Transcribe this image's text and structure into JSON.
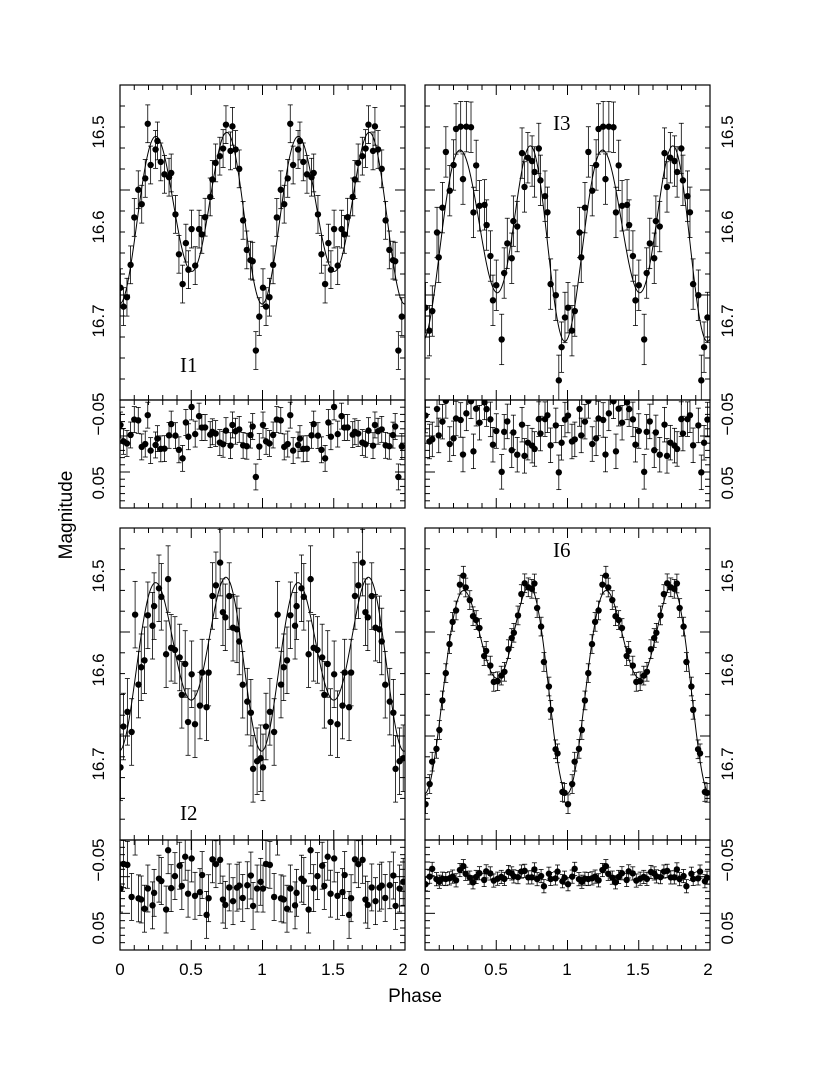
{
  "chart_data": {
    "type": "scatter",
    "xlabel": "Phase",
    "ylabel": "Magnitude",
    "x_ticks": [
      "0",
      "0.5",
      "1",
      "1.5",
      "2"
    ],
    "xlim": [
      0,
      2
    ],
    "main_ylim": [
      16.5,
      16.8
    ],
    "main_y_ticks": [
      "16.5",
      "16.6",
      "16.7"
    ],
    "resid_ylim": [
      -0.05,
      0.1
    ],
    "resid_y_ticks": [
      "−0.05",
      "0",
      "0.05"
    ],
    "y_inverted": true,
    "panels": [
      {
        "label": "I1",
        "curve": {
          "mean": 16.62,
          "terms": [
            [
              1,
              0.012,
              0.0
            ],
            [
              2,
              0.073,
              0.0
            ],
            [
              3,
              0.004,
              0.5
            ]
          ]
        },
        "noise": 0.016,
        "error_bar": 0.018,
        "resid_offset": 0.0,
        "seed": 11
      },
      {
        "label": "I3",
        "curve": {
          "mean": 16.64,
          "terms": [
            [
              1,
              0.02,
              0.3
            ],
            [
              2,
              0.08,
              0.1
            ],
            [
              3,
              0.008,
              1.2
            ]
          ]
        },
        "noise": 0.022,
        "error_bar": 0.024,
        "resid_offset": 0.0,
        "seed": 23
      },
      {
        "label": "I2",
        "curve": {
          "mean": 16.62,
          "terms": [
            [
              1,
              0.02,
              0.0
            ],
            [
              2,
              0.07,
              0.05
            ],
            [
              3,
              0.005,
              0.5
            ]
          ]
        },
        "noise": 0.03,
        "error_bar": 0.032,
        "resid_offset": 0.0,
        "seed": 37
      },
      {
        "label": "I6",
        "curve": {
          "mean": 16.63,
          "terms": [
            [
              1,
              0.05,
              0.0
            ],
            [
              2,
              0.07,
              0.0
            ],
            [
              3,
              0.006,
              0.4
            ]
          ]
        },
        "noise": 0.006,
        "error_bar": 0.009,
        "resid_offset": 0.0,
        "seed": 53
      }
    ]
  }
}
